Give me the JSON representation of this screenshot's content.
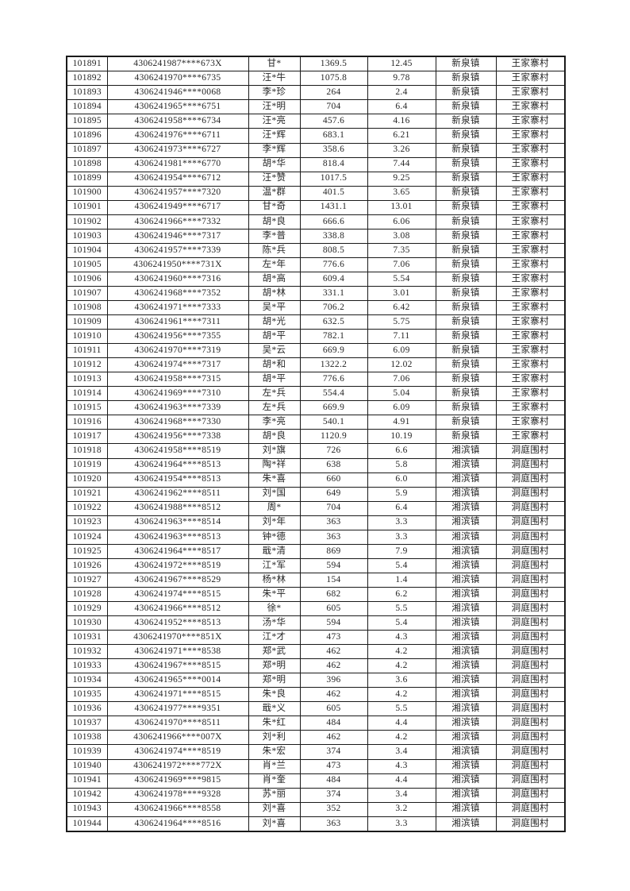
{
  "page": {
    "background_color": "#ffffff",
    "text_color": "#262626",
    "border_color": "#1a1a1a"
  },
  "table": {
    "rows": [
      [
        "101891",
        "4306241987****673X",
        "甘*",
        "1369.5",
        "12.45",
        "新泉镇",
        "王家寨村"
      ],
      [
        "101892",
        "4306241970****6735",
        "汪*牛",
        "1075.8",
        "9.78",
        "新泉镇",
        "王家寨村"
      ],
      [
        "101893",
        "4306241946****0068",
        "李*珍",
        "264",
        "2.4",
        "新泉镇",
        "王家寨村"
      ],
      [
        "101894",
        "4306241965****6751",
        "汪*明",
        "704",
        "6.4",
        "新泉镇",
        "王家寨村"
      ],
      [
        "101895",
        "4306241958****6734",
        "汪*亮",
        "457.6",
        "4.16",
        "新泉镇",
        "王家寨村"
      ],
      [
        "101896",
        "4306241976****6711",
        "汪*辉",
        "683.1",
        "6.21",
        "新泉镇",
        "王家寨村"
      ],
      [
        "101897",
        "4306241973****6727",
        "李*辉",
        "358.6",
        "3.26",
        "新泉镇",
        "王家寨村"
      ],
      [
        "101898",
        "4306241981****6770",
        "胡*华",
        "818.4",
        "7.44",
        "新泉镇",
        "王家寨村"
      ],
      [
        "101899",
        "4306241954****6712",
        "汪*赞",
        "1017.5",
        "9.25",
        "新泉镇",
        "王家寨村"
      ],
      [
        "101900",
        "4306241957****7320",
        "温*群",
        "401.5",
        "3.65",
        "新泉镇",
        "王家寨村"
      ],
      [
        "101901",
        "4306241949****6717",
        "甘*奇",
        "1431.1",
        "13.01",
        "新泉镇",
        "王家寨村"
      ],
      [
        "101902",
        "4306241966****7332",
        "胡*良",
        "666.6",
        "6.06",
        "新泉镇",
        "王家寨村"
      ],
      [
        "101903",
        "4306241946****7317",
        "李*普",
        "338.8",
        "3.08",
        "新泉镇",
        "王家寨村"
      ],
      [
        "101904",
        "4306241957****7339",
        "陈*兵",
        "808.5",
        "7.35",
        "新泉镇",
        "王家寨村"
      ],
      [
        "101905",
        "4306241950****731X",
        "左*年",
        "776.6",
        "7.06",
        "新泉镇",
        "王家寨村"
      ],
      [
        "101906",
        "4306241960****7316",
        "胡*高",
        "609.4",
        "5.54",
        "新泉镇",
        "王家寨村"
      ],
      [
        "101907",
        "4306241968****7352",
        "胡*林",
        "331.1",
        "3.01",
        "新泉镇",
        "王家寨村"
      ],
      [
        "101908",
        "4306241971****7333",
        "吴*平",
        "706.2",
        "6.42",
        "新泉镇",
        "王家寨村"
      ],
      [
        "101909",
        "4306241961****7311",
        "胡*光",
        "632.5",
        "5.75",
        "新泉镇",
        "王家寨村"
      ],
      [
        "101910",
        "4306241956****7355",
        "胡*平",
        "782.1",
        "7.11",
        "新泉镇",
        "王家寨村"
      ],
      [
        "101911",
        "4306241970****7319",
        "吴*云",
        "669.9",
        "6.09",
        "新泉镇",
        "王家寨村"
      ],
      [
        "101912",
        "4306241974****7317",
        "胡*和",
        "1322.2",
        "12.02",
        "新泉镇",
        "王家寨村"
      ],
      [
        "101913",
        "4306241958****7315",
        "胡*平",
        "776.6",
        "7.06",
        "新泉镇",
        "王家寨村"
      ],
      [
        "101914",
        "4306241969****7310",
        "左*兵",
        "554.4",
        "5.04",
        "新泉镇",
        "王家寨村"
      ],
      [
        "101915",
        "4306241963****7339",
        "左*兵",
        "669.9",
        "6.09",
        "新泉镇",
        "王家寨村"
      ],
      [
        "101916",
        "4306241968****7330",
        "李*亮",
        "540.1",
        "4.91",
        "新泉镇",
        "王家寨村"
      ],
      [
        "101917",
        "4306241956****7338",
        "胡*良",
        "1120.9",
        "10.19",
        "新泉镇",
        "王家寨村"
      ],
      [
        "101918",
        "4306241958****8519",
        "刘*旗",
        "726",
        "6.6",
        "湘滨镇",
        "洞庭围村"
      ],
      [
        "101919",
        "4306241964****8513",
        "陶*祥",
        "638",
        "5.8",
        "湘滨镇",
        "洞庭围村"
      ],
      [
        "101920",
        "4306241954****8513",
        "朱*喜",
        "660",
        "6.0",
        "湘滨镇",
        "洞庭围村"
      ],
      [
        "101921",
        "4306241962****8511",
        "刘*国",
        "649",
        "5.9",
        "湘滨镇",
        "洞庭围村"
      ],
      [
        "101922",
        "4306241988****8512",
        "周*",
        "704",
        "6.4",
        "湘滨镇",
        "洞庭围村"
      ],
      [
        "101923",
        "4306241963****8514",
        "刘*年",
        "363",
        "3.3",
        "湘滨镇",
        "洞庭围村"
      ],
      [
        "101924",
        "4306241963****8513",
        "钟*德",
        "363",
        "3.3",
        "湘滨镇",
        "洞庭围村"
      ],
      [
        "101925",
        "4306241964****8517",
        "戢*清",
        "869",
        "7.9",
        "湘滨镇",
        "洞庭围村"
      ],
      [
        "101926",
        "4306241972****8519",
        "江*军",
        "594",
        "5.4",
        "湘滨镇",
        "洞庭围村"
      ],
      [
        "101927",
        "4306241967****8529",
        "杨*林",
        "154",
        "1.4",
        "湘滨镇",
        "洞庭围村"
      ],
      [
        "101928",
        "4306241974****8515",
        "朱*平",
        "682",
        "6.2",
        "湘滨镇",
        "洞庭围村"
      ],
      [
        "101929",
        "4306241966****8512",
        "徐*",
        "605",
        "5.5",
        "湘滨镇",
        "洞庭围村"
      ],
      [
        "101930",
        "4306241952****8513",
        "汤*华",
        "594",
        "5.4",
        "湘滨镇",
        "洞庭围村"
      ],
      [
        "101931",
        "4306241970****851X",
        "江*才",
        "473",
        "4.3",
        "湘滨镇",
        "洞庭围村"
      ],
      [
        "101932",
        "4306241971****8538",
        "郑*武",
        "462",
        "4.2",
        "湘滨镇",
        "洞庭围村"
      ],
      [
        "101933",
        "4306241967****8515",
        "郑*明",
        "462",
        "4.2",
        "湘滨镇",
        "洞庭围村"
      ],
      [
        "101934",
        "4306241965****0014",
        "郑*明",
        "396",
        "3.6",
        "湘滨镇",
        "洞庭围村"
      ],
      [
        "101935",
        "4306241971****8515",
        "朱*良",
        "462",
        "4.2",
        "湘滨镇",
        "洞庭围村"
      ],
      [
        "101936",
        "4306241977****9351",
        "戢*义",
        "605",
        "5.5",
        "湘滨镇",
        "洞庭围村"
      ],
      [
        "101937",
        "4306241970****8511",
        "朱*红",
        "484",
        "4.4",
        "湘滨镇",
        "洞庭围村"
      ],
      [
        "101938",
        "4306241966****007X",
        "刘*利",
        "462",
        "4.2",
        "湘滨镇",
        "洞庭围村"
      ],
      [
        "101939",
        "4306241974****8519",
        "朱*宏",
        "374",
        "3.4",
        "湘滨镇",
        "洞庭围村"
      ],
      [
        "101940",
        "4306241972****772X",
        "肖*兰",
        "473",
        "4.3",
        "湘滨镇",
        "洞庭围村"
      ],
      [
        "101941",
        "4306241969****9815",
        "肖*奎",
        "484",
        "4.4",
        "湘滨镇",
        "洞庭围村"
      ],
      [
        "101942",
        "4306241978****9328",
        "苏*丽",
        "374",
        "3.4",
        "湘滨镇",
        "洞庭围村"
      ],
      [
        "101943",
        "4306241966****8558",
        "刘*喜",
        "352",
        "3.2",
        "湘滨镇",
        "洞庭围村"
      ],
      [
        "101944",
        "4306241964****8516",
        "刘*喜",
        "363",
        "3.3",
        "湘滨镇",
        "洞庭围村"
      ]
    ]
  }
}
